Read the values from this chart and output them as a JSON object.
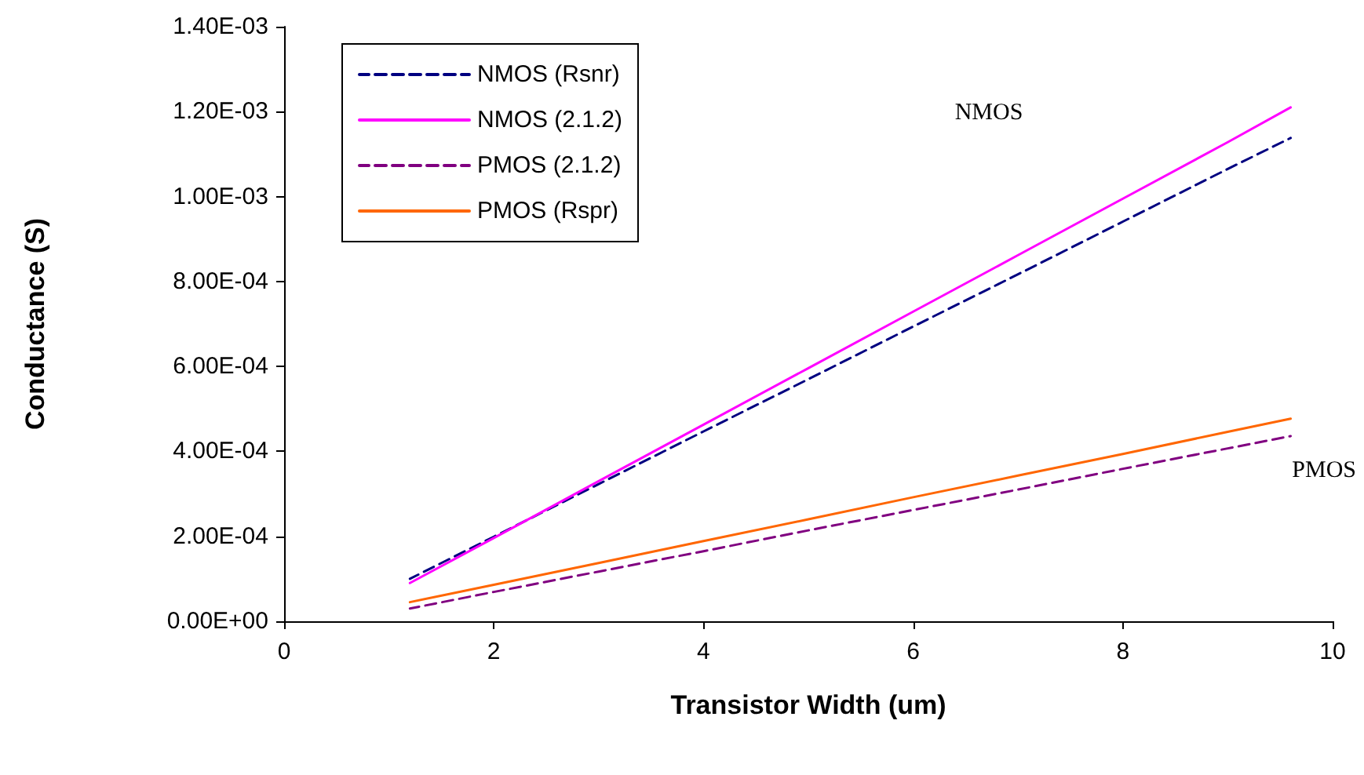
{
  "chart_data": {
    "type": "line",
    "xlabel": "Transistor Width (um)",
    "ylabel": "Conductance (S)",
    "x": [
      1.2,
      2,
      3,
      4,
      5,
      6,
      7,
      8,
      9,
      9.6
    ],
    "series": [
      {
        "name": "NMOS (Rsnr)",
        "color": "#000080",
        "line_style": "dashed",
        "values": [
          0.0001,
          0.000199,
          0.000323,
          0.000447,
          0.00057,
          0.000694,
          0.000817,
          0.000941,
          0.001065,
          0.001138
        ]
      },
      {
        "name": "NMOS (2.1.2)",
        "color": "#ff00ff",
        "line_style": "solid",
        "values": [
          9e-05,
          0.000196,
          0.00033,
          0.000463,
          0.000596,
          0.000729,
          0.000862,
          0.000995,
          0.001128,
          0.00121
        ]
      },
      {
        "name": "PMOS (2.1.2)",
        "color": "#800080",
        "line_style": "dashed",
        "values": [
          3e-05,
          6.9e-05,
          0.000117,
          0.000165,
          0.000214,
          0.000262,
          0.00031,
          0.000359,
          0.000407,
          0.000436
        ]
      },
      {
        "name": "PMOS (Rspr)",
        "color": "#ff6600",
        "line_style": "solid",
        "values": [
          4.5e-05,
          8.6e-05,
          0.000137,
          0.000189,
          0.00024,
          0.000292,
          0.000343,
          0.000394,
          0.000446,
          0.000477
        ]
      }
    ],
    "xlim": [
      0,
      10
    ],
    "xticks": [
      0,
      2,
      4,
      6,
      8,
      10
    ],
    "ylim": [
      0,
      0.0014
    ],
    "yticks": [
      {
        "value": 0,
        "label": "0.00E+00"
      },
      {
        "value": 0.0002,
        "label": "2.00E-04"
      },
      {
        "value": 0.0004,
        "label": "4.00E-04"
      },
      {
        "value": 0.0006,
        "label": "6.00E-04"
      },
      {
        "value": 0.0008,
        "label": "8.00E-04"
      },
      {
        "value": 0.001,
        "label": "1.00E-03"
      },
      {
        "value": 0.0012,
        "label": "1.20E-03"
      },
      {
        "value": 0.0014,
        "label": "1.40E-03"
      }
    ],
    "annotations": [
      "NMOS",
      "PMOS"
    ],
    "grid": false,
    "legend": "top left",
    "marker": "none"
  }
}
